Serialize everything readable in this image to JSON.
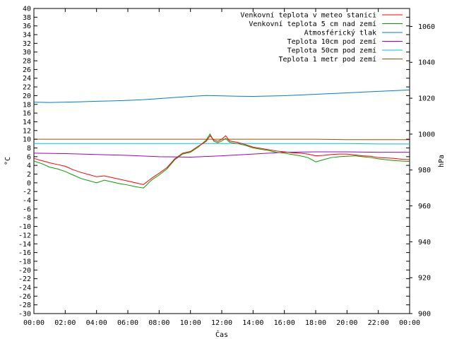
{
  "chart_data": {
    "type": "line",
    "xlabel": "Čas",
    "ylabel_left": "°C",
    "ylabel_right": "hPa",
    "x_ticks": [
      "00:00",
      "02:00",
      "04:00",
      "06:00",
      "08:00",
      "10:00",
      "12:00",
      "14:00",
      "16:00",
      "18:00",
      "20:00",
      "22:00",
      "00:00"
    ],
    "x_range_hours": [
      0,
      24
    ],
    "ylim_left": [
      -30,
      40
    ],
    "ylim_right": [
      900,
      1070
    ],
    "y_left_ticks": [
      -30,
      -28,
      -26,
      -24,
      -22,
      -20,
      -18,
      -16,
      -14,
      -12,
      -10,
      -8,
      -6,
      -4,
      -2,
      0,
      2,
      4,
      6,
      8,
      10,
      12,
      14,
      16,
      18,
      20,
      22,
      24,
      26,
      28,
      30,
      32,
      34,
      36,
      38,
      40
    ],
    "y_right_ticks": [
      900,
      920,
      940,
      960,
      980,
      1000,
      1020,
      1040,
      1060
    ],
    "grid": false,
    "legend_position": "top-right",
    "series": [
      {
        "name": "Venkovní teplota v meteo stanici",
        "color": "#ff0000",
        "axis": "left",
        "x": [
          0,
          0.5,
          1,
          1.5,
          2,
          2.5,
          3,
          3.5,
          4,
          4.5,
          5,
          5.5,
          6,
          6.5,
          7,
          7.5,
          8,
          8.5,
          9,
          9.5,
          10,
          10.5,
          11,
          11.25,
          11.5,
          11.75,
          12,
          12.25,
          12.5,
          13,
          13.5,
          14,
          14.5,
          15,
          15.5,
          16,
          16.5,
          17,
          17.5,
          18,
          18.5,
          19,
          19.5,
          20,
          20.5,
          21,
          21.5,
          22,
          22.5,
          23,
          23.5,
          24
        ],
        "y": [
          5.6,
          5.1,
          4.6,
          4.2,
          3.8,
          3.0,
          2.4,
          1.9,
          1.4,
          1.6,
          1.2,
          0.8,
          0.4,
          0.0,
          -0.4,
          1.0,
          2.2,
          3.5,
          5.5,
          6.8,
          7.2,
          8.4,
          9.5,
          10.8,
          9.8,
          9.5,
          10.0,
          10.8,
          9.6,
          9.3,
          8.8,
          8.2,
          7.9,
          7.6,
          7.3,
          7.1,
          6.9,
          6.8,
          6.6,
          6.2,
          6.3,
          6.5,
          6.6,
          6.6,
          6.4,
          6.2,
          6.1,
          5.8,
          5.7,
          5.6,
          5.4,
          5.3
        ]
      },
      {
        "name": "Venkovní teplota 5 cm nad zemí",
        "color": "#00a000",
        "axis": "left",
        "x": [
          0,
          0.5,
          1,
          1.5,
          2,
          2.5,
          3,
          3.5,
          4,
          4.5,
          5,
          5.5,
          6,
          6.5,
          7,
          7.5,
          8,
          8.5,
          9,
          9.5,
          10,
          10.5,
          11,
          11.25,
          11.5,
          11.75,
          12,
          12.25,
          12.5,
          13,
          13.5,
          14,
          14.5,
          15,
          15.5,
          16,
          16.5,
          17,
          17.5,
          18,
          18.5,
          19,
          19.5,
          20,
          20.5,
          21,
          21.5,
          22,
          22.5,
          23,
          23.5,
          24
        ],
        "y": [
          5.0,
          4.4,
          3.6,
          3.2,
          2.6,
          1.8,
          1.0,
          0.5,
          0.0,
          0.6,
          0.2,
          -0.2,
          -0.5,
          -0.9,
          -1.2,
          0.6,
          1.8,
          3.2,
          5.3,
          6.6,
          7.0,
          8.2,
          9.8,
          11.2,
          9.5,
          9.2,
          9.6,
          10.2,
          9.3,
          9.0,
          8.6,
          8.0,
          7.7,
          7.4,
          7.0,
          6.8,
          6.5,
          6.2,
          5.8,
          4.8,
          5.3,
          5.8,
          6.0,
          6.1,
          6.2,
          6.0,
          5.8,
          5.5,
          5.3,
          5.1,
          5.0,
          4.9
        ]
      },
      {
        "name": "Atmosférický tlak",
        "color": "#0080c0",
        "axis": "right",
        "x": [
          0,
          1,
          2,
          3,
          4,
          5,
          6,
          7,
          8,
          9,
          10,
          11,
          12,
          13,
          14,
          15,
          16,
          17,
          18,
          19,
          20,
          21,
          22,
          23,
          24
        ],
        "y": [
          1017.8,
          1017.6,
          1017.8,
          1018.0,
          1018.3,
          1018.5,
          1018.8,
          1019.2,
          1019.8,
          1020.4,
          1021.0,
          1021.5,
          1021.3,
          1021.1,
          1021.0,
          1021.2,
          1021.4,
          1021.8,
          1022.2,
          1022.6,
          1023.0,
          1023.4,
          1023.8,
          1024.2,
          1024.6
        ]
      },
      {
        "name": "Teplota 10cm pod zemí",
        "color": "#a000c0",
        "axis": "left",
        "x": [
          0,
          2,
          4,
          6,
          8,
          10,
          12,
          14,
          16,
          18,
          20,
          22,
          24
        ],
        "y": [
          6.8,
          6.7,
          6.5,
          6.3,
          6.0,
          5.9,
          6.2,
          6.6,
          7.0,
          7.1,
          7.1,
          7.0,
          7.0
        ]
      },
      {
        "name": "Teplota 50cm pod zemí",
        "color": "#00c0e0",
        "axis": "left",
        "x": [
          0,
          2,
          4,
          6,
          8,
          10,
          12,
          14,
          16,
          18,
          20,
          22,
          24
        ],
        "y": [
          9.0,
          9.0,
          9.0,
          9.0,
          9.0,
          9.0,
          9.0,
          9.0,
          9.0,
          9.0,
          9.0,
          8.9,
          8.9
        ]
      },
      {
        "name": "Teplota 1 metr pod zemí",
        "color": "#a05000",
        "axis": "left",
        "x": [
          0,
          2,
          4,
          6,
          8,
          10,
          12,
          14,
          16,
          18,
          20,
          22,
          24
        ],
        "y": [
          10.0,
          10.0,
          10.0,
          10.0,
          10.0,
          10.0,
          10.0,
          10.0,
          10.0,
          10.0,
          9.9,
          9.9,
          9.9
        ]
      }
    ]
  }
}
